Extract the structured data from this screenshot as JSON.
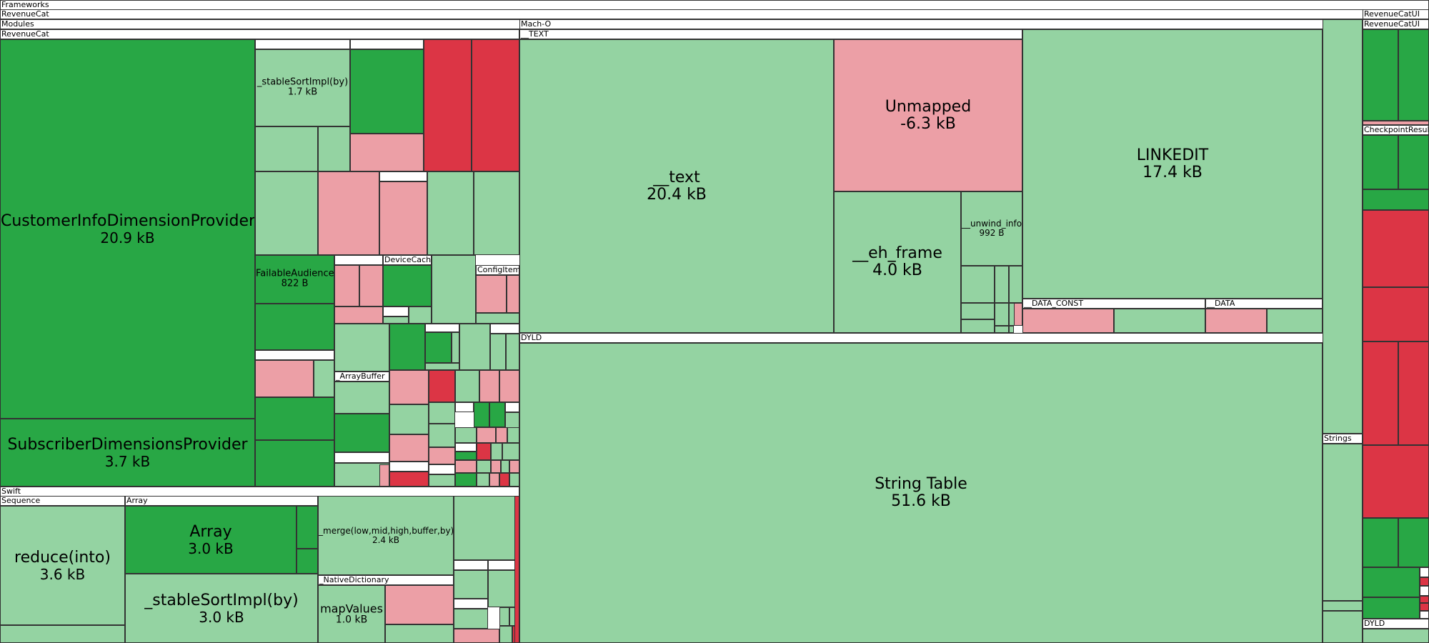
{
  "chart_data": {
    "type": "treemap",
    "colors": {
      "dark_green": "#28a745",
      "light_green": "#94d3a2",
      "light_red": "#ec9fa6",
      "dark_red": "#dc3545",
      "header": "#ffffff",
      "border": "#333333"
    },
    "groups": [
      {
        "label": "Frameworks"
      },
      {
        "label": "RevenueCat"
      },
      {
        "label": "Modules"
      },
      {
        "label": "RevenueCat"
      },
      {
        "label": "Mach-O"
      },
      {
        "label": "__TEXT"
      },
      {
        "label": "__DATA_CONST"
      },
      {
        "label": "__DATA"
      },
      {
        "label": "DYLD"
      },
      {
        "label": "Swift"
      },
      {
        "label": "Sequence"
      },
      {
        "label": "Array"
      },
      {
        "label": "_NativeDictionary"
      },
      {
        "label": "DeviceCache"
      },
      {
        "label": "ConfigItem"
      },
      {
        "label": "_ArrayBuffer"
      },
      {
        "label": "RevenueCatUI"
      },
      {
        "label": "RevenueCatUI"
      },
      {
        "label": "CheckpointResult"
      },
      {
        "label": "Strings"
      },
      {
        "label": "DYLD"
      }
    ],
    "cells": [
      {
        "name": "CustomerInfoDimensionProvider",
        "size": "20.9 kB",
        "color": "dark_green"
      },
      {
        "name": "SubscriberDimensionsProvider",
        "size": "3.7 kB",
        "color": "dark_green"
      },
      {
        "name": "_stableSortImpl(by)",
        "size": "1.7 kB",
        "color": "light_green"
      },
      {
        "name": "FailableAudience",
        "size": "822 B",
        "color": "dark_green"
      },
      {
        "name": "__text",
        "size": "20.4 kB",
        "color": "light_green"
      },
      {
        "name": "Unmapped",
        "size": "-6.3 kB",
        "color": "light_red"
      },
      {
        "name": "LINKEDIT",
        "size": "17.4 kB",
        "color": "light_green"
      },
      {
        "name": "__eh_frame",
        "size": "4.0 kB",
        "color": "light_green"
      },
      {
        "name": "__unwind_info",
        "size": "992 B",
        "color": "light_green"
      },
      {
        "name": "String Table",
        "size": "51.6 kB",
        "color": "light_green"
      },
      {
        "name": "reduce(into)",
        "size": "3.6 kB",
        "color": "light_green"
      },
      {
        "name": "Array",
        "size": "3.0 kB",
        "color": "dark_green"
      },
      {
        "name": "_stableSortImpl(by)",
        "size": "3.0 kB",
        "color": "light_green"
      },
      {
        "name": "_merge(low,mid,high,buffer,by)",
        "size": "2.4 kB",
        "color": "light_green"
      },
      {
        "name": "mapValues",
        "size": "1.0 kB",
        "color": "light_green"
      }
    ]
  }
}
